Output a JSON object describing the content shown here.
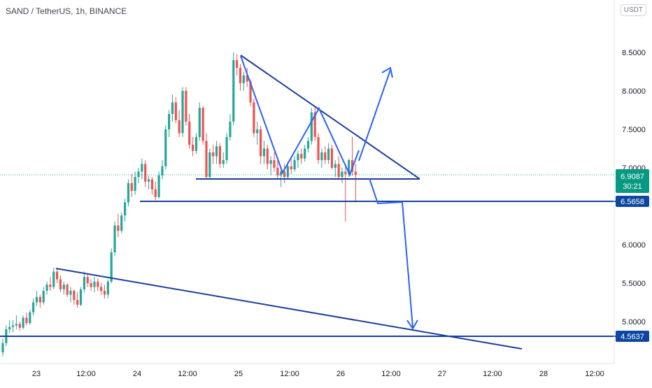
{
  "header": {
    "symbol": "SAND",
    "quote": "TetherUS",
    "interval": "1h",
    "exchange": "BINANCE",
    "currency_button": "USDT"
  },
  "price_badges": {
    "current_price": "6.9087",
    "countdown": "30:21",
    "support_level": "6.5658",
    "lower_level": "4.5637"
  },
  "colors": {
    "up": "#26a69a",
    "down": "#ef5350",
    "trend_line": "#1a3f9c",
    "arrow": "#2962ff",
    "current_price_badge": "#089981",
    "level_badge": "#0d47a1"
  },
  "chart_data": {
    "type": "candlestick",
    "title": "SAND / TetherUS, 1h, BINANCE",
    "y_axis": {
      "ticks": [
        "8.5000",
        "8.0000",
        "7.5000",
        "7.0000",
        "6.0000",
        "5.5000",
        "5.0000"
      ],
      "range": [
        4.38,
        8.95
      ],
      "position": "right"
    },
    "x_axis": {
      "ticks": [
        "23",
        "12:00",
        "24",
        "12:00",
        "25",
        "12:00",
        "26",
        "12:00",
        "27",
        "12:00",
        "28",
        "12:00"
      ]
    },
    "series": [
      {
        "values_ohlc": [
          [
            4.6,
            4.78,
            4.55,
            4.72
          ],
          [
            4.72,
            4.95,
            4.68,
            4.9
          ],
          [
            4.9,
            5.02,
            4.85,
            4.93
          ],
          [
            4.93,
            5.02,
            4.86,
            4.95
          ],
          [
            4.95,
            5.08,
            4.9,
            4.97
          ],
          [
            4.97,
            5.0,
            4.88,
            4.92
          ],
          [
            4.92,
            5.08,
            4.9,
            5.05
          ],
          [
            5.05,
            5.12,
            4.95,
            4.98
          ],
          [
            4.98,
            5.15,
            4.96,
            5.12
          ],
          [
            5.12,
            5.3,
            5.08,
            5.25
          ],
          [
            5.25,
            5.4,
            5.2,
            5.32
          ],
          [
            5.32,
            5.35,
            5.18,
            5.25
          ],
          [
            5.25,
            5.45,
            5.22,
            5.4
          ],
          [
            5.4,
            5.52,
            5.35,
            5.48
          ],
          [
            5.48,
            5.58,
            5.4,
            5.45
          ],
          [
            5.45,
            5.7,
            5.42,
            5.65
          ],
          [
            5.65,
            5.68,
            5.5,
            5.55
          ],
          [
            5.55,
            5.6,
            5.38,
            5.42
          ],
          [
            5.42,
            5.52,
            5.35,
            5.48
          ],
          [
            5.48,
            5.5,
            5.32,
            5.35
          ],
          [
            5.35,
            5.45,
            5.25,
            5.4
          ],
          [
            5.4,
            5.42,
            5.22,
            5.28
          ],
          [
            5.28,
            5.38,
            5.18,
            5.22
          ],
          [
            5.22,
            5.45,
            5.2,
            5.42
          ],
          [
            5.42,
            5.65,
            5.38,
            5.58
          ],
          [
            5.58,
            5.62,
            5.45,
            5.5
          ],
          [
            5.5,
            5.55,
            5.4,
            5.45
          ],
          [
            5.45,
            5.58,
            5.38,
            5.52
          ],
          [
            5.52,
            5.56,
            5.4,
            5.45
          ],
          [
            5.45,
            5.5,
            5.35,
            5.4
          ],
          [
            5.4,
            5.48,
            5.3,
            5.35
          ],
          [
            5.35,
            5.55,
            5.3,
            5.52
          ],
          [
            5.52,
            5.95,
            5.5,
            5.9
          ],
          [
            5.9,
            6.3,
            5.85,
            6.25
          ],
          [
            6.25,
            6.4,
            6.1,
            6.18
          ],
          [
            6.18,
            6.42,
            6.15,
            6.38
          ],
          [
            6.38,
            6.6,
            6.3,
            6.55
          ],
          [
            6.55,
            6.85,
            6.5,
            6.8
          ],
          [
            6.8,
            6.92,
            6.62,
            6.7
          ],
          [
            6.7,
            6.95,
            6.65,
            6.88
          ],
          [
            6.88,
            7.0,
            6.8,
            6.95
          ],
          [
            6.95,
            7.12,
            6.85,
            7.05
          ],
          [
            7.05,
            7.1,
            6.75,
            6.82
          ],
          [
            6.82,
            6.9,
            6.72,
            6.85
          ],
          [
            6.85,
            6.88,
            6.65,
            6.72
          ],
          [
            6.72,
            6.82,
            6.58,
            6.62
          ],
          [
            6.62,
            6.95,
            6.6,
            6.9
          ],
          [
            6.9,
            7.1,
            6.85,
            7.02
          ],
          [
            7.02,
            7.55,
            6.98,
            7.5
          ],
          [
            7.5,
            7.75,
            7.4,
            7.7
          ],
          [
            7.7,
            7.95,
            7.6,
            7.85
          ],
          [
            7.85,
            7.92,
            7.58,
            7.62
          ],
          [
            7.62,
            7.75,
            7.4,
            7.45
          ],
          [
            7.45,
            8.05,
            7.4,
            8.0
          ],
          [
            8.0,
            8.05,
            7.55,
            7.6
          ],
          [
            7.6,
            7.7,
            7.25,
            7.3
          ],
          [
            7.3,
            7.4,
            7.15,
            7.22
          ],
          [
            7.22,
            7.45,
            7.18,
            7.4
          ],
          [
            7.4,
            7.85,
            7.35,
            7.78
          ],
          [
            7.78,
            7.8,
            7.3,
            7.35
          ],
          [
            7.35,
            7.45,
            6.85,
            6.88
          ],
          [
            6.88,
            7.25,
            6.85,
            7.2
          ],
          [
            7.2,
            7.3,
            7.05,
            7.15
          ],
          [
            7.15,
            7.35,
            7.05,
            7.28
          ],
          [
            7.28,
            7.32,
            7.0,
            7.05
          ],
          [
            7.05,
            7.2,
            7.0,
            7.1
          ],
          [
            7.1,
            7.45,
            7.05,
            7.4
          ],
          [
            7.4,
            7.7,
            7.35,
            7.6
          ],
          [
            7.6,
            8.5,
            7.55,
            8.4
          ],
          [
            8.4,
            8.48,
            8.2,
            8.3
          ],
          [
            8.3,
            8.35,
            8.0,
            8.1
          ],
          [
            8.1,
            8.25,
            8.0,
            8.2
          ],
          [
            8.2,
            8.3,
            8.05,
            8.12
          ],
          [
            8.12,
            8.15,
            7.8,
            7.85
          ],
          [
            7.85,
            7.9,
            7.4,
            7.45
          ],
          [
            7.45,
            7.6,
            7.3,
            7.5
          ],
          [
            7.5,
            7.55,
            7.05,
            7.15
          ],
          [
            7.15,
            7.35,
            7.05,
            7.25
          ],
          [
            7.25,
            7.3,
            6.98,
            7.05
          ],
          [
            7.05,
            7.15,
            6.9,
            7.1
          ],
          [
            7.1,
            7.2,
            6.95,
            7.0
          ],
          [
            7.0,
            7.1,
            6.85,
            6.9
          ],
          [
            6.9,
            7.0,
            6.75,
            6.95
          ],
          [
            6.95,
            7.05,
            6.8,
            6.88
          ],
          [
            6.88,
            7.08,
            6.85,
            7.02
          ],
          [
            7.02,
            7.12,
            6.92,
            6.98
          ],
          [
            6.98,
            7.15,
            6.95,
            7.1
          ],
          [
            7.1,
            7.22,
            7.0,
            7.18
          ],
          [
            7.18,
            7.25,
            7.05,
            7.12
          ],
          [
            7.12,
            7.3,
            7.08,
            7.25
          ],
          [
            7.25,
            7.4,
            7.2,
            7.35
          ],
          [
            7.35,
            7.78,
            7.3,
            7.72
          ],
          [
            7.72,
            7.8,
            7.35,
            7.4
          ],
          [
            7.4,
            7.45,
            7.05,
            7.1
          ],
          [
            7.1,
            7.25,
            7.0,
            7.2
          ],
          [
            7.2,
            7.28,
            7.05,
            7.1
          ],
          [
            7.1,
            7.32,
            7.05,
            7.25
          ],
          [
            7.25,
            7.3,
            6.98,
            7.0
          ],
          [
            7.0,
            7.1,
            6.88,
            7.05
          ],
          [
            7.05,
            7.15,
            6.85,
            6.88
          ],
          [
            6.88,
            7.0,
            6.8,
            6.95
          ],
          [
            6.95,
            7.05,
            6.3,
            6.92
          ],
          [
            6.92,
            7.12,
            6.88,
            7.1
          ],
          [
            7.1,
            7.4,
            6.9,
            6.95
          ],
          [
            6.95,
            7.05,
            6.55,
            6.91
          ]
        ]
      }
    ],
    "annotations": {
      "horizontal_levels": [
        6.5658,
        4.5637
      ],
      "current_price": 6.9087
    }
  }
}
